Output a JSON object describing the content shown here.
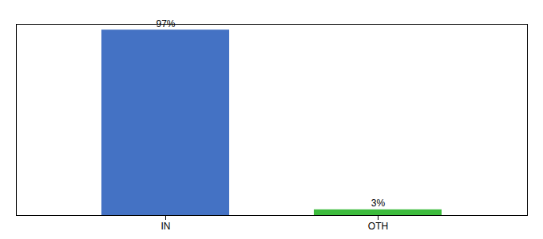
{
  "chart_data": {
    "type": "bar",
    "categories": [
      "IN",
      "OTH"
    ],
    "values": [
      97,
      3
    ],
    "value_labels": [
      "97%",
      "3%"
    ],
    "colors": [
      "#4472c4",
      "#3dbb3d"
    ],
    "ylim": [
      0,
      100
    ],
    "data_labels": true,
    "tick_labels": "x",
    "grid": false
  }
}
